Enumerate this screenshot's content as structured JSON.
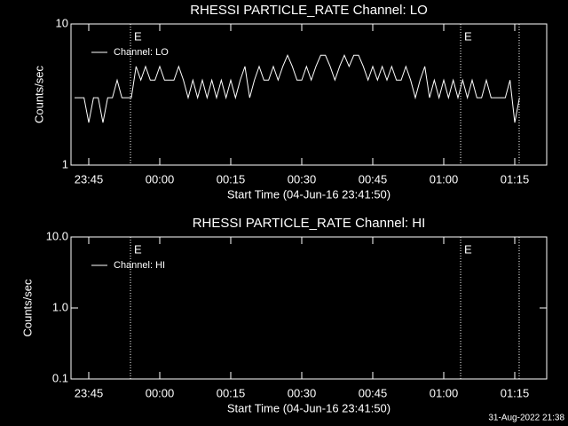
{
  "chart_data": [
    {
      "type": "line",
      "title": "RHESSI PARTICLE_RATE Channel: LO",
      "xlabel": "Start Time (04-Jun-16 23:41:50)",
      "ylabel": "Counts/sec",
      "log_y": true,
      "ylim": [
        1,
        10
      ],
      "yticks": [
        1,
        10
      ],
      "xlim": [
        "23:41:15",
        "01:21:45"
      ],
      "xticks": [
        "23:45",
        "00:00",
        "00:15",
        "00:30",
        "00:45",
        "01:00",
        "01:15"
      ],
      "markers": [
        {
          "x": "23:53:49",
          "label": "E"
        },
        {
          "x": "01:03:34",
          "label": "E"
        },
        {
          "x": "01:15:56"
        }
      ],
      "x": [
        "23:42",
        "23:43",
        "23:44",
        "23:45",
        "23:46",
        "23:47",
        "23:48",
        "23:49",
        "23:50",
        "23:51",
        "23:52",
        "23:53",
        "23:54",
        "23:55",
        "23:56",
        "23:57",
        "23:58",
        "23:59",
        "00:00",
        "00:01",
        "00:02",
        "00:03",
        "00:04",
        "00:05",
        "00:06",
        "00:07",
        "00:08",
        "00:09",
        "00:10",
        "00:11",
        "00:12",
        "00:13",
        "00:14",
        "00:15",
        "00:16",
        "00:17",
        "00:18",
        "00:19",
        "00:20",
        "00:21",
        "00:22",
        "00:23",
        "00:24",
        "00:25",
        "00:26",
        "00:27",
        "00:28",
        "00:29",
        "00:30",
        "00:31",
        "00:32",
        "00:33",
        "00:34",
        "00:35",
        "00:36",
        "00:37",
        "00:38",
        "00:39",
        "00:40",
        "00:41",
        "00:42",
        "00:43",
        "00:44",
        "00:45",
        "00:46",
        "00:47",
        "00:48",
        "00:49",
        "00:50",
        "00:51",
        "00:52",
        "00:53",
        "00:54",
        "00:55",
        "00:56",
        "00:57",
        "00:58",
        "00:59",
        "01:00",
        "01:01",
        "01:02",
        "01:03",
        "01:04",
        "01:05",
        "01:06",
        "01:07",
        "01:08",
        "01:09",
        "01:10",
        "01:11",
        "01:12",
        "01:13",
        "01:14",
        "01:15",
        "01:16"
      ],
      "series": [
        {
          "name": "Channel: LO",
          "color": "#ffffff",
          "values": [
            3,
            3,
            3,
            2,
            3,
            3,
            2,
            3,
            3,
            4,
            3,
            3,
            3,
            5,
            4,
            5,
            4,
            4,
            5,
            4,
            4,
            4,
            5,
            4,
            3,
            4,
            3,
            4,
            3,
            4,
            3,
            4,
            3,
            4,
            3,
            4,
            5,
            3,
            4,
            5,
            4,
            4,
            5,
            4,
            5,
            6,
            5,
            4,
            4,
            5,
            4,
            5,
            6,
            6,
            5,
            4,
            5,
            6,
            5,
            6,
            6,
            5,
            4,
            5,
            4,
            5,
            4,
            5,
            4,
            4,
            5,
            4,
            3,
            4,
            5,
            3,
            4,
            3,
            4,
            3,
            4,
            3,
            4,
            3,
            4,
            3,
            3,
            4,
            3,
            3,
            3,
            3,
            4,
            2,
            3
          ]
        }
      ]
    },
    {
      "type": "line",
      "title": "RHESSI PARTICLE_RATE Channel: HI",
      "xlabel": "Start Time (04-Jun-16 23:41:50)",
      "ylabel": "Counts/sec",
      "log_y": true,
      "ylim": [
        0.1,
        10
      ],
      "yticks": [
        0.1,
        {
          "value": 1,
          "label": "1.0"
        },
        {
          "value": 10,
          "label": "10.0"
        }
      ],
      "xlim": [
        "23:41:15",
        "01:21:45"
      ],
      "xticks": [
        "23:45",
        "00:00",
        "00:15",
        "00:30",
        "00:45",
        "01:00",
        "01:15"
      ],
      "markers": [
        {
          "x": "23:53:49",
          "label": "E"
        },
        {
          "x": "01:03:34",
          "label": "E"
        },
        {
          "x": "01:15:56"
        }
      ],
      "x": [],
      "series": [
        {
          "name": "Channel: HI",
          "color": "#ffffff",
          "values": []
        }
      ]
    }
  ],
  "footer": "31-Aug-2022 21:38"
}
